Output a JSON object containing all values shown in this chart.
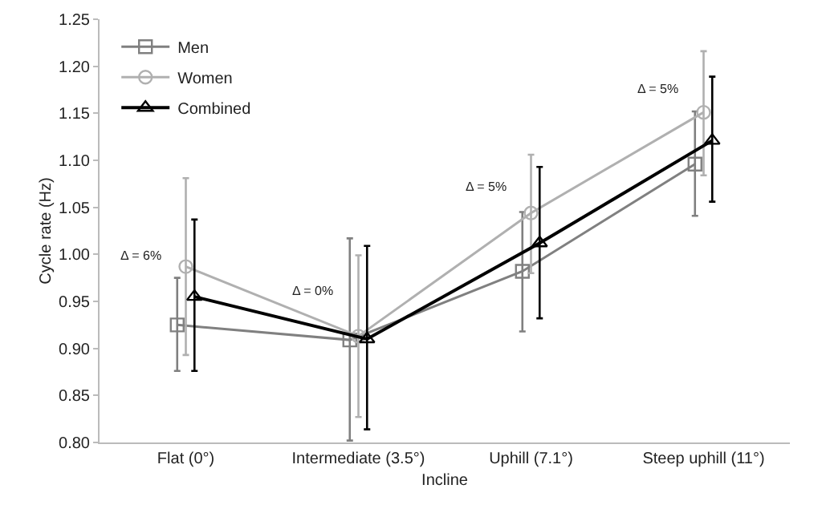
{
  "chart_data": {
    "type": "line",
    "xlabel": "Incline",
    "ylabel": "Cycle rate (Hz)",
    "categories": [
      "Flat (0°)",
      "Intermediate (3.5°)",
      "Uphill (7.1°)",
      "Steep uphill (11°)"
    ],
    "series": [
      {
        "name": "Men",
        "color": "#808080",
        "marker": "square",
        "values": [
          0.925,
          0.909,
          0.982,
          1.096
        ],
        "errors": [
          [
            0.876,
            0.975
          ],
          [
            0.802,
            1.017
          ],
          [
            0.918,
            1.045
          ],
          [
            1.041,
            1.152
          ]
        ]
      },
      {
        "name": "Women",
        "color": "#b0b0b0",
        "marker": "circle",
        "values": [
          0.987,
          0.913,
          1.044,
          1.151
        ],
        "errors": [
          [
            0.893,
            1.081
          ],
          [
            0.827,
            0.999
          ],
          [
            0.98,
            1.106
          ],
          [
            1.084,
            1.216
          ]
        ]
      },
      {
        "name": "Combined",
        "color": "#000000",
        "marker": "triangle",
        "values": [
          0.955,
          0.91,
          1.012,
          1.121
        ],
        "errors": [
          [
            0.876,
            1.037
          ],
          [
            0.814,
            1.009
          ],
          [
            0.932,
            1.093
          ],
          [
            1.056,
            1.189
          ]
        ]
      }
    ],
    "annotations": [
      {
        "text": "Δ = 6%",
        "x": "Flat (0°)",
        "y": 0.987
      },
      {
        "text": "Δ = 0%",
        "x": "Intermediate (3.5°)",
        "y": 0.95
      },
      {
        "text": "Δ = 5%",
        "x": "Uphill (7.1°)",
        "y": 1.06
      },
      {
        "text": "Δ = 5%",
        "x": "Steep uphill (11°)",
        "y": 1.165
      }
    ],
    "ylim": [
      0.8,
      1.25
    ],
    "yticks": [
      {
        "value": 0.8,
        "label": "0.80"
      },
      {
        "value": 0.85,
        "label": "0.85"
      },
      {
        "value": 0.9,
        "label": "0.90"
      },
      {
        "value": 0.95,
        "label": "0.95"
      },
      {
        "value": 1.0,
        "label": "1.00"
      },
      {
        "value": 1.05,
        "label": "1.05"
      },
      {
        "value": 1.1,
        "label": "1.10"
      },
      {
        "value": 1.15,
        "label": "1.15"
      },
      {
        "value": 1.2,
        "label": "1.20"
      },
      {
        "value": 1.25,
        "label": "1.25"
      }
    ],
    "grid": false,
    "legend": "top left",
    "line_style": "solid"
  }
}
